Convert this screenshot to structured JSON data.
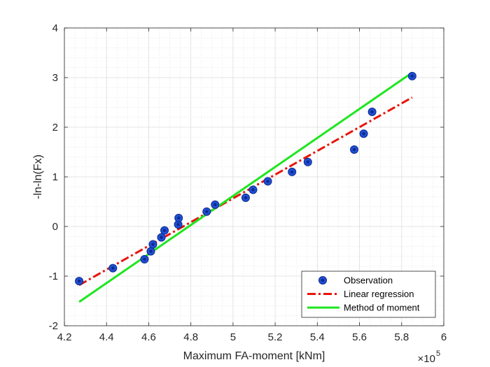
{
  "chart_data": {
    "type": "scatter",
    "xlabel": "Maximum FA-moment [kNm]",
    "ylabel": "-ln-ln(Fx)",
    "x_exponent_base": "×10",
    "x_exponent_power": "5",
    "xlim": [
      420000,
      600000
    ],
    "ylim": [
      -2,
      4
    ],
    "x_ticks": [
      4.2,
      4.4,
      4.6,
      4.8,
      5,
      5.2,
      5.4,
      5.6,
      5.8,
      6
    ],
    "x_tick_labels": [
      "4.2",
      "4.4",
      "4.6",
      "4.8",
      "5",
      "5.2",
      "5.4",
      "5.6",
      "5.8",
      "6"
    ],
    "y_ticks": [
      -2,
      -1,
      0,
      1,
      2,
      3,
      4
    ],
    "y_tick_labels": [
      "-2",
      "-1",
      "0",
      "1",
      "2",
      "3",
      "4"
    ],
    "grid": true,
    "minor_grid": true,
    "legend_position": "bottom-right",
    "series": [
      {
        "name": "Observation",
        "kind": "scatter",
        "color": "#1f4fd6",
        "edge_color": "#0e2a8a",
        "points": [
          [
            427000,
            -1.1
          ],
          [
            443000,
            -0.84
          ],
          [
            458000,
            -0.66
          ],
          [
            461000,
            -0.5
          ],
          [
            462000,
            -0.36
          ],
          [
            466000,
            -0.22
          ],
          [
            467500,
            -0.08
          ],
          [
            474000,
            0.04
          ],
          [
            474200,
            0.17
          ],
          [
            487500,
            0.3
          ],
          [
            491500,
            0.44
          ],
          [
            506000,
            0.58
          ],
          [
            509500,
            0.74
          ],
          [
            516500,
            0.91
          ],
          [
            528000,
            1.1
          ],
          [
            535500,
            1.3
          ],
          [
            557500,
            1.55
          ],
          [
            562000,
            1.87
          ],
          [
            566000,
            2.31
          ],
          [
            585000,
            3.03
          ]
        ]
      },
      {
        "name": "Linear regression",
        "kind": "line",
        "style": "dashdot",
        "color": "#e8140c",
        "points": [
          [
            427000,
            -1.18
          ],
          [
            585000,
            2.6
          ]
        ]
      },
      {
        "name": "Method of moment",
        "kind": "line",
        "style": "solid",
        "color": "#1ee61e",
        "points": [
          [
            427000,
            -1.52
          ],
          [
            585000,
            3.1
          ]
        ]
      }
    ]
  }
}
